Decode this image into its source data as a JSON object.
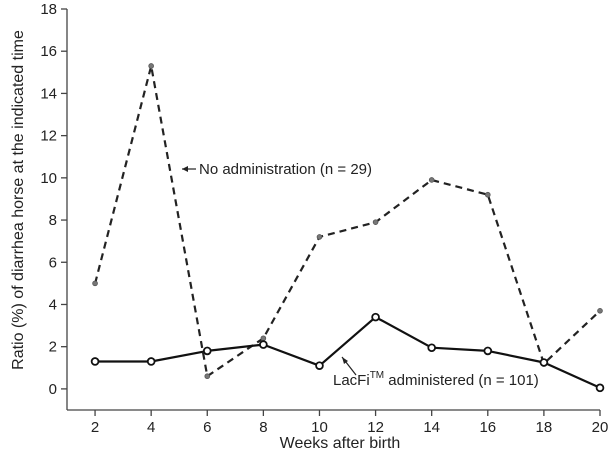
{
  "chart_data": {
    "type": "line",
    "xlabel": "Weeks after birth",
    "ylabel": "Ratio (%) of diarrhea horse at the indicated time",
    "x": [
      2,
      4,
      6,
      8,
      10,
      12,
      14,
      16,
      18,
      20
    ],
    "xlim": [
      1,
      20
    ],
    "ylim": [
      -1,
      18
    ],
    "xticks": [
      "2",
      "4",
      "6",
      "8",
      "10",
      "12",
      "14",
      "16",
      "18",
      "20"
    ],
    "yticks": [
      "0",
      "2",
      "4",
      "6",
      "8",
      "10",
      "12",
      "14",
      "16",
      "18"
    ],
    "grid": false,
    "series": [
      {
        "values": [
          5.0,
          15.3,
          0.6,
          2.4,
          7.2,
          7.9,
          9.9,
          9.2,
          1.2,
          3.7
        ],
        "line_style": "dashed",
        "color": "#222222"
      },
      {
        "values": [
          1.3,
          1.3,
          1.8,
          2.1,
          1.1,
          3.4,
          1.95,
          1.8,
          1.25,
          0.05
        ],
        "line_style": "solid",
        "color": "#111111"
      }
    ],
    "annotations": {
      "no_admin": "No administration (n = 29)",
      "lacfi_pre": "LacFi",
      "lacfi_sup": "TM",
      "lacfi_post": " administered (n = 101)"
    }
  }
}
